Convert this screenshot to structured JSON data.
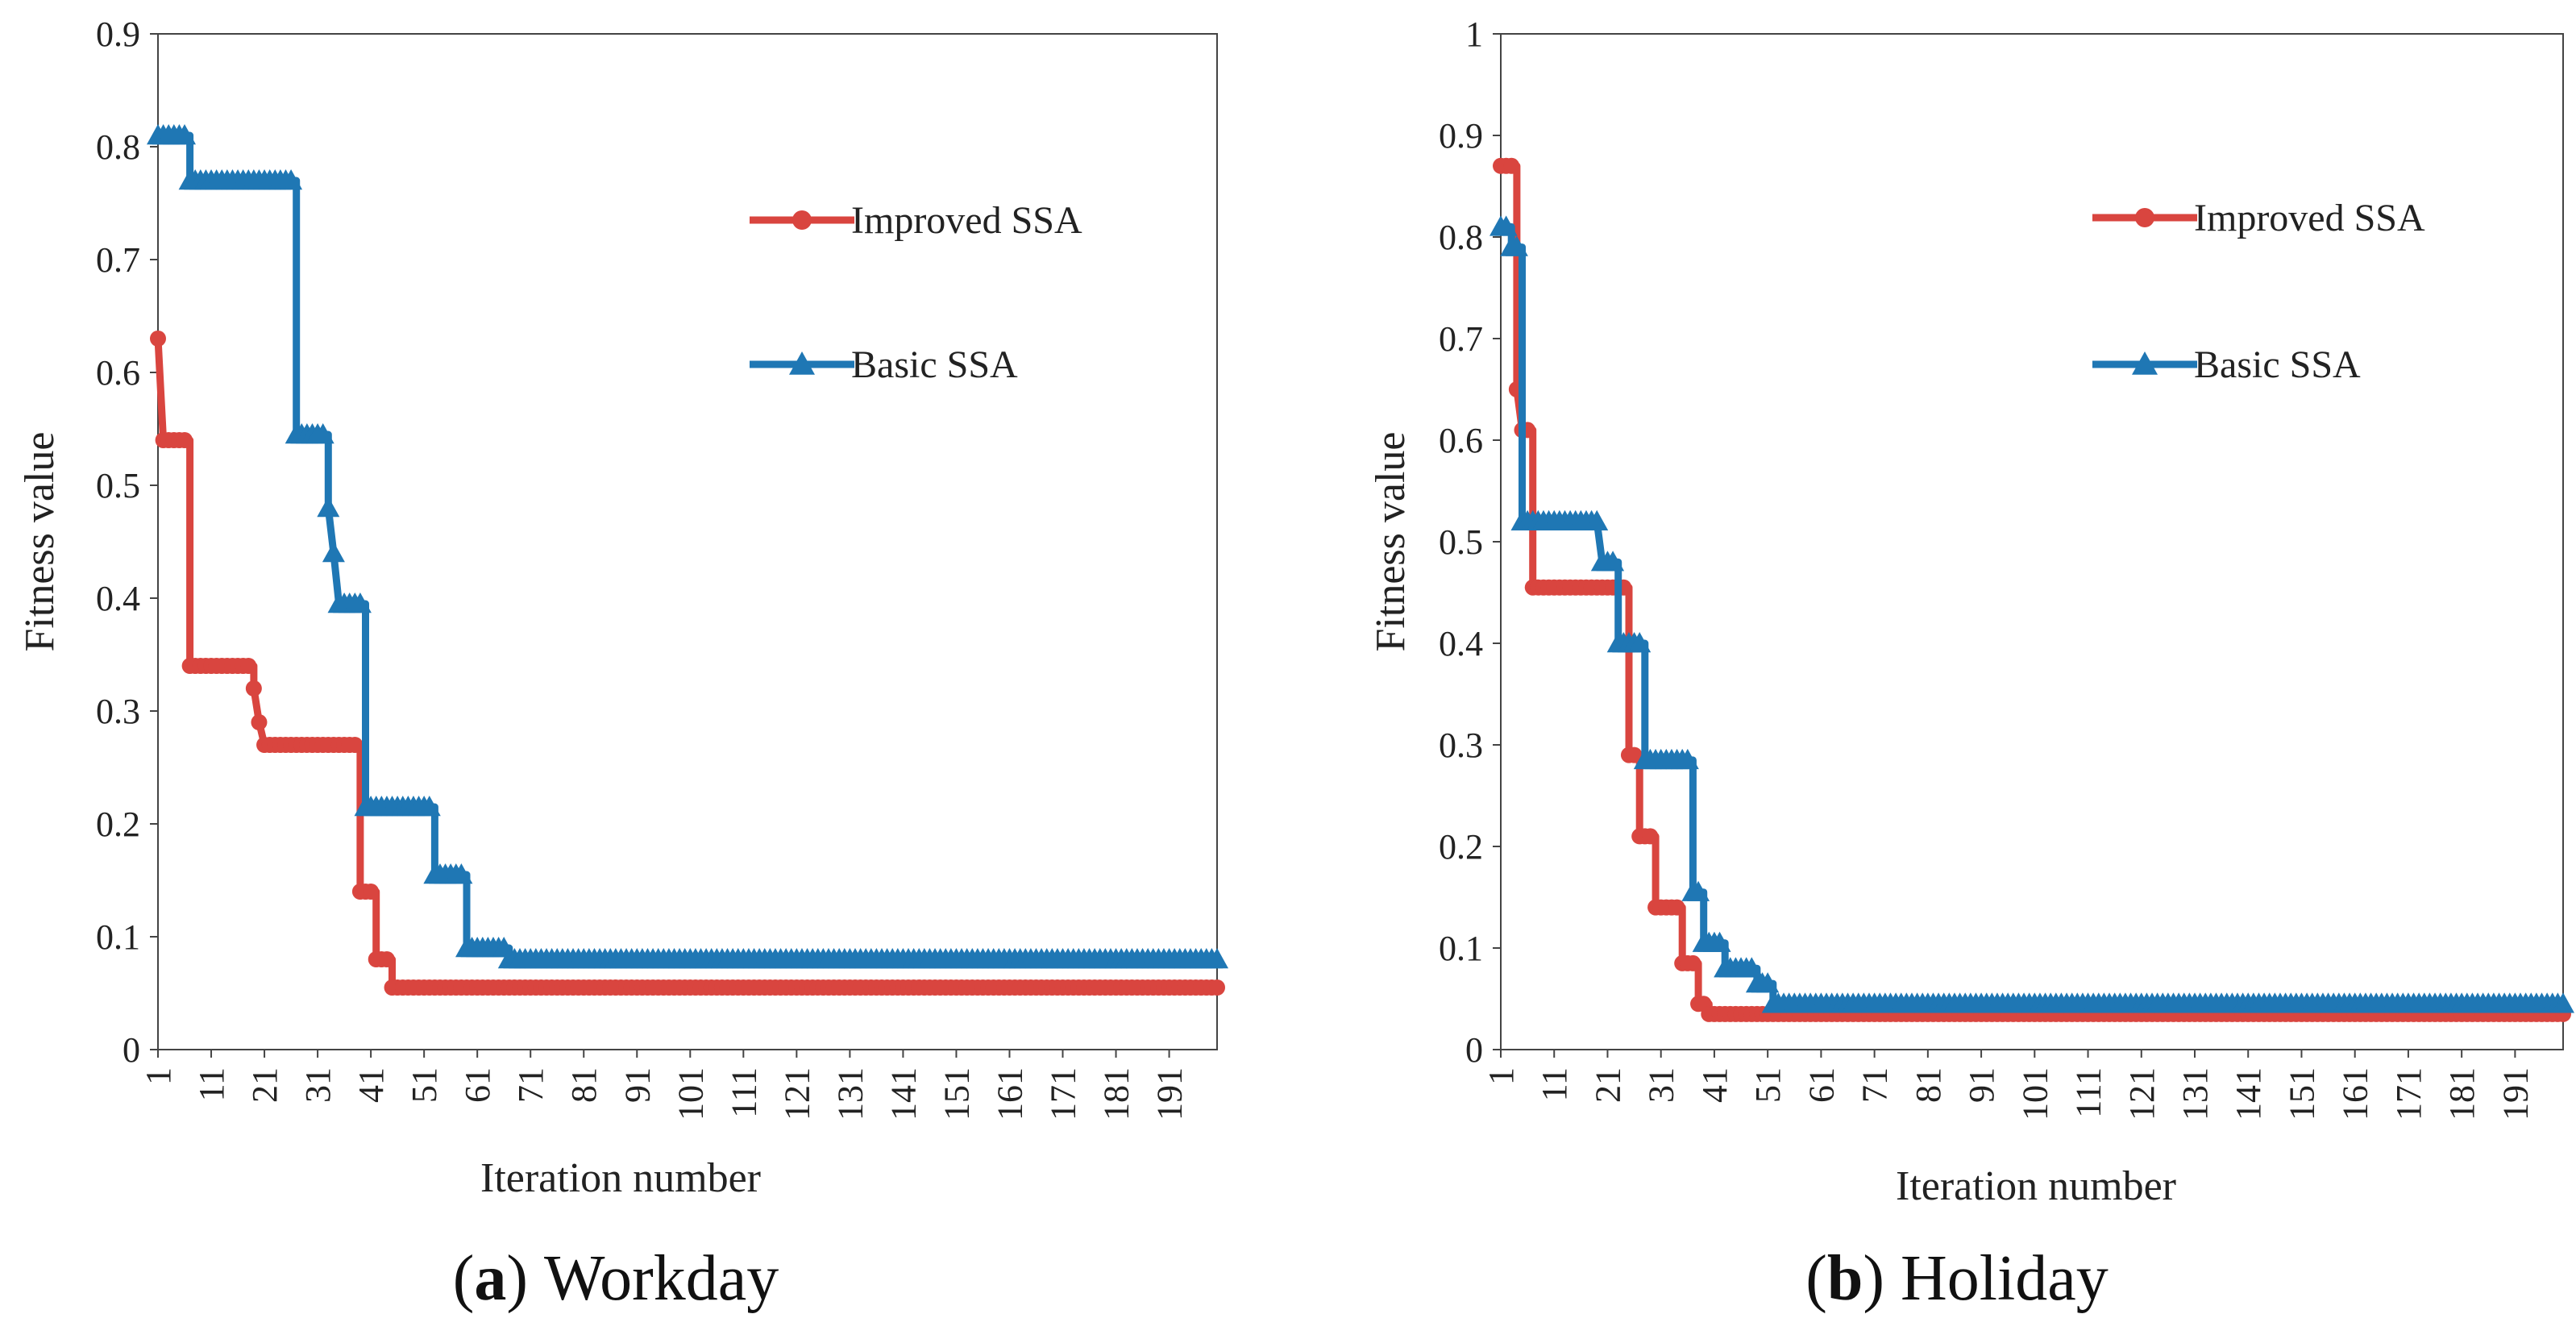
{
  "figure": {
    "captions": [
      {
        "open": "(",
        "letter": "a",
        "close": ")",
        "text": "Workday"
      },
      {
        "open": "(",
        "letter": "b",
        "close": ")",
        "text": "Holiday"
      }
    ]
  },
  "chart_data": [
    {
      "type": "line",
      "title": "",
      "xlabel": "Iteration number",
      "ylabel": "Fitness value",
      "xlim": [
        1,
        200
      ],
      "ylim": [
        0,
        0.9
      ],
      "yticks": [
        "0",
        "0.1",
        "0.2",
        "0.3",
        "0.4",
        "0.5",
        "0.6",
        "0.7",
        "0.8",
        "0.9"
      ],
      "xticks": [
        "1",
        "11",
        "21",
        "31",
        "41",
        "51",
        "61",
        "71",
        "81",
        "91",
        "101",
        "111",
        "121",
        "131",
        "141",
        "151",
        "161",
        "171",
        "181",
        "191"
      ],
      "legend_position": "top-right",
      "series": [
        {
          "name": "Improved SSA",
          "color": "#d9453f",
          "marker": "circle",
          "points": [
            [
              1,
              0.63
            ],
            [
              2,
              0.54
            ],
            [
              7,
              0.54
            ],
            [
              7,
              0.34
            ],
            [
              19,
              0.34
            ],
            [
              19,
              0.32
            ],
            [
              20,
              0.29
            ],
            [
              21,
              0.27
            ],
            [
              39,
              0.27
            ],
            [
              39,
              0.14
            ],
            [
              42,
              0.14
            ],
            [
              42,
              0.08
            ],
            [
              45,
              0.08
            ],
            [
              45,
              0.055
            ],
            [
              200,
              0.055
            ]
          ]
        },
        {
          "name": "Basic SSA",
          "color": "#1f77b4",
          "marker": "triangle",
          "points": [
            [
              1,
              0.81
            ],
            [
              7,
              0.81
            ],
            [
              7,
              0.77
            ],
            [
              27,
              0.77
            ],
            [
              27,
              0.545
            ],
            [
              33,
              0.545
            ],
            [
              33,
              0.48
            ],
            [
              34,
              0.44
            ],
            [
              35,
              0.395
            ],
            [
              40,
              0.395
            ],
            [
              40,
              0.215
            ],
            [
              53,
              0.215
            ],
            [
              53,
              0.155
            ],
            [
              59,
              0.155
            ],
            [
              59,
              0.09
            ],
            [
              67,
              0.09
            ],
            [
              67,
              0.08
            ],
            [
              200,
              0.08
            ]
          ]
        }
      ]
    },
    {
      "type": "line",
      "title": "",
      "xlabel": "Iteration number",
      "ylabel": "Fitness value",
      "xlim": [
        1,
        200
      ],
      "ylim": [
        0,
        1
      ],
      "yticks": [
        "0",
        "0.1",
        "0.2",
        "0.3",
        "0.4",
        "0.5",
        "0.6",
        "0.7",
        "0.8",
        "0.9",
        "1"
      ],
      "xticks": [
        "1",
        "11",
        "21",
        "31",
        "41",
        "51",
        "61",
        "71",
        "81",
        "91",
        "101",
        "111",
        "121",
        "131",
        "141",
        "151",
        "161",
        "171",
        "181",
        "191"
      ],
      "legend_position": "top-right",
      "series": [
        {
          "name": "Improved SSA",
          "color": "#d9453f",
          "marker": "circle",
          "points": [
            [
              1,
              0.87
            ],
            [
              4,
              0.87
            ],
            [
              4,
              0.65
            ],
            [
              5,
              0.61
            ],
            [
              7,
              0.61
            ],
            [
              7,
              0.455
            ],
            [
              25,
              0.455
            ],
            [
              25,
              0.29
            ],
            [
              27,
              0.29
            ],
            [
              27,
              0.21
            ],
            [
              30,
              0.21
            ],
            [
              30,
              0.14
            ],
            [
              35,
              0.14
            ],
            [
              35,
              0.085
            ],
            [
              38,
              0.085
            ],
            [
              38,
              0.045
            ],
            [
              40,
              0.045
            ],
            [
              40,
              0.035
            ],
            [
              200,
              0.035
            ]
          ]
        },
        {
          "name": "Basic SSA",
          "color": "#1f77b4",
          "marker": "triangle",
          "points": [
            [
              1,
              0.81
            ],
            [
              3,
              0.81
            ],
            [
              3,
              0.79
            ],
            [
              5,
              0.79
            ],
            [
              5,
              0.52
            ],
            [
              19,
              0.52
            ],
            [
              20,
              0.48
            ],
            [
              23,
              0.48
            ],
            [
              23,
              0.4
            ],
            [
              28,
              0.4
            ],
            [
              28,
              0.285
            ],
            [
              37,
              0.285
            ],
            [
              37,
              0.155
            ],
            [
              39,
              0.155
            ],
            [
              39,
              0.105
            ],
            [
              43,
              0.105
            ],
            [
              43,
              0.08
            ],
            [
              49,
              0.08
            ],
            [
              49,
              0.065
            ],
            [
              52,
              0.065
            ],
            [
              52,
              0.045
            ],
            [
              200,
              0.045
            ]
          ]
        }
      ]
    }
  ]
}
